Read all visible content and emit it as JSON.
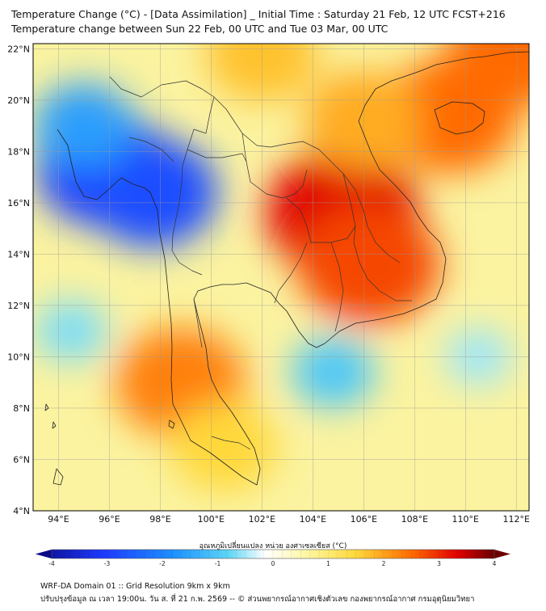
{
  "title_line1": "Temperature Change (°C) - [Data Assimilation] _ Initial Time : Saturday 21 Feb, 12 UTC FCST+216",
  "title_line2": "Temperature change between Sun 22 Feb, 00 UTC and Tue 03 Mar, 00 UTC",
  "map": {
    "lon_range": [
      93,
      112.5
    ],
    "lat_range": [
      4,
      22.2
    ],
    "lon_ticks": [
      "94°E",
      "96°E",
      "98°E",
      "100°E",
      "102°E",
      "104°E",
      "106°E",
      "108°E",
      "110°E",
      "112°E"
    ],
    "lat_ticks": [
      "22°N",
      "20°N",
      "18°N",
      "16°N",
      "14°N",
      "12°N",
      "10°N",
      "8°N",
      "6°N",
      "4°N"
    ]
  },
  "colorbar": {
    "title": "อุณหภูมิเปลี่ยนแปลง หน่วย องศาเซลเซียส (°C)",
    "ticks": [
      "-4",
      "-3",
      "-2",
      "-1",
      "0",
      "1",
      "2",
      "3",
      "4"
    ],
    "min": -4,
    "max": 4
  },
  "anomalies": [
    {
      "label": "warm core Laos/Cambodia",
      "lon": 105.2,
      "lat": 15.6,
      "value": 3.6
    },
    {
      "label": "warm Cambodia south",
      "lon": 106.2,
      "lat": 13.6,
      "value": 3.2
    },
    {
      "label": "warm Hainan",
      "lon": 109.4,
      "lat": 19.4,
      "value": 3.0
    },
    {
      "label": "warm north Vietnam",
      "lon": 106.0,
      "lat": 19.2,
      "value": 2.4
    },
    {
      "label": "warm southern Thailand",
      "lon": 98.8,
      "lat": 9.0,
      "value": 2.8
    },
    {
      "label": "warm Malay peninsula",
      "lon": 100.5,
      "lat": 6.5,
      "value": 2.0
    },
    {
      "label": "warm north corner",
      "lon": 102.0,
      "lat": 21.8,
      "value": 2.2
    },
    {
      "label": "warm NE corner",
      "lon": 112.0,
      "lat": 22.0,
      "value": 3.0
    },
    {
      "label": "cold Myanmar west",
      "lon": 95.8,
      "lat": 17.3,
      "value": -3.0
    },
    {
      "label": "cold Myanmar east",
      "lon": 97.7,
      "lat": 16.4,
      "value": -2.8
    },
    {
      "label": "cold Andaman north",
      "lon": 95.0,
      "lat": 19.0,
      "value": -1.8
    },
    {
      "label": "cool Gulf of Thailand",
      "lon": 104.8,
      "lat": 9.4,
      "value": -1.2
    },
    {
      "label": "cool Andaman sea",
      "lon": 94.5,
      "lat": 11.0,
      "value": -0.8
    },
    {
      "label": "cool SE sea",
      "lon": 110.5,
      "lat": 10.0,
      "value": -0.6
    }
  ],
  "footer_line1": "WRF-DA Domain 01 :: Grid Resolution 9km x 9km",
  "footer_line2": "ปรับปรุงข้อมูล ณ เวลา 19:00น. วัน ส. ที่ 21 ก.พ. 2569 -- © ส่วนพยากรณ์อากาศเชิงตัวเลข กองพยากรณ์อากาศ กรมอุตุนิยมวิทยา",
  "colors": {
    "baseline": "#fbf3a0",
    "coast": "#222222",
    "gridline": "#9a9a9a"
  }
}
